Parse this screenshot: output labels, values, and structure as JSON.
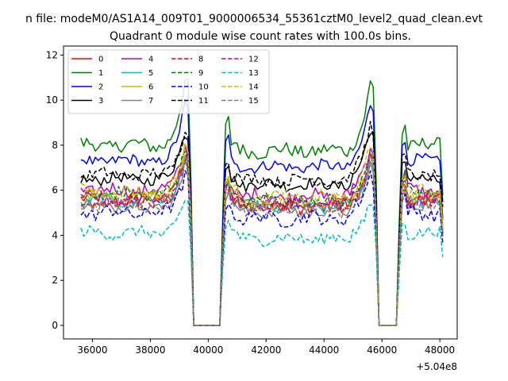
{
  "figure": {
    "suptitle": "n file: modeM0/AS1A14_009T01_9000006534_55361cztM0_level2_quad_clean.evt"
  },
  "chart_data": {
    "type": "line",
    "title": "Quadrant 0 module wise count rates with 100.0s bins.",
    "xlabel": "",
    "ylabel": "",
    "x_offset_label": "+5.04e8",
    "xlim": [
      35000,
      48600
    ],
    "ylim": [
      -0.6,
      12.4
    ],
    "xticks": [
      36000,
      38000,
      40000,
      42000,
      44000,
      46000,
      48000
    ],
    "xtick_labels": [
      "36000",
      "38000",
      "40000",
      "42000",
      "44000",
      "46000",
      "48000"
    ],
    "yticks": [
      0,
      2,
      4,
      6,
      8,
      10,
      12
    ],
    "ytick_labels": [
      "0",
      "2",
      "4",
      "6",
      "8",
      "10",
      "12"
    ],
    "grid": false,
    "legend_position": "upper-left",
    "legend_columns": 4,
    "x_range": {
      "start": 35600,
      "end": 48100,
      "step": 100
    },
    "gap_intervals": [
      [
        39500,
        40400
      ],
      [
        45900,
        46500
      ]
    ],
    "flare_peaks": [
      39300,
      45700
    ],
    "series": [
      {
        "name": "0",
        "color": "#ff0000",
        "dash": "solid",
        "base": 5.6,
        "noise": 0.3
      },
      {
        "name": "1",
        "color": "#008000",
        "dash": "solid",
        "base": 8.0,
        "noise": 0.3
      },
      {
        "name": "2",
        "color": "#0000ff",
        "dash": "solid",
        "base": 7.3,
        "noise": 0.25
      },
      {
        "name": "3",
        "color": "#000000",
        "dash": "solid",
        "base": 6.5,
        "noise": 0.25
      },
      {
        "name": "4",
        "color": "#bf00bf",
        "dash": "solid",
        "base": 6.0,
        "noise": 0.3
      },
      {
        "name": "5",
        "color": "#00bfbf",
        "dash": "solid",
        "base": 5.5,
        "noise": 0.25
      },
      {
        "name": "6",
        "color": "#bfbf00",
        "dash": "solid",
        "base": 5.7,
        "noise": 0.3
      },
      {
        "name": "7",
        "color": "#808080",
        "dash": "solid",
        "base": 5.3,
        "noise": 0.25
      },
      {
        "name": "8",
        "color": "#ff0000",
        "dash": "dashed",
        "base": 5.5,
        "noise": 0.3
      },
      {
        "name": "9",
        "color": "#008000",
        "dash": "dashed",
        "base": 5.8,
        "noise": 0.3
      },
      {
        "name": "10",
        "color": "#0000ff",
        "dash": "dashed",
        "base": 5.0,
        "noise": 0.3
      },
      {
        "name": "11",
        "color": "#000000",
        "dash": "dashed",
        "base": 6.7,
        "noise": 0.25
      },
      {
        "name": "12",
        "color": "#bf00bf",
        "dash": "dashed",
        "base": 5.6,
        "noise": 0.3
      },
      {
        "name": "13",
        "color": "#00bfbf",
        "dash": "dashed",
        "base": 4.1,
        "noise": 0.25
      },
      {
        "name": "14",
        "color": "#bfbf00",
        "dash": "dashed",
        "base": 5.9,
        "noise": 0.3
      },
      {
        "name": "15",
        "color": "#808080",
        "dash": "dashed",
        "base": 5.4,
        "noise": 0.3
      }
    ]
  }
}
